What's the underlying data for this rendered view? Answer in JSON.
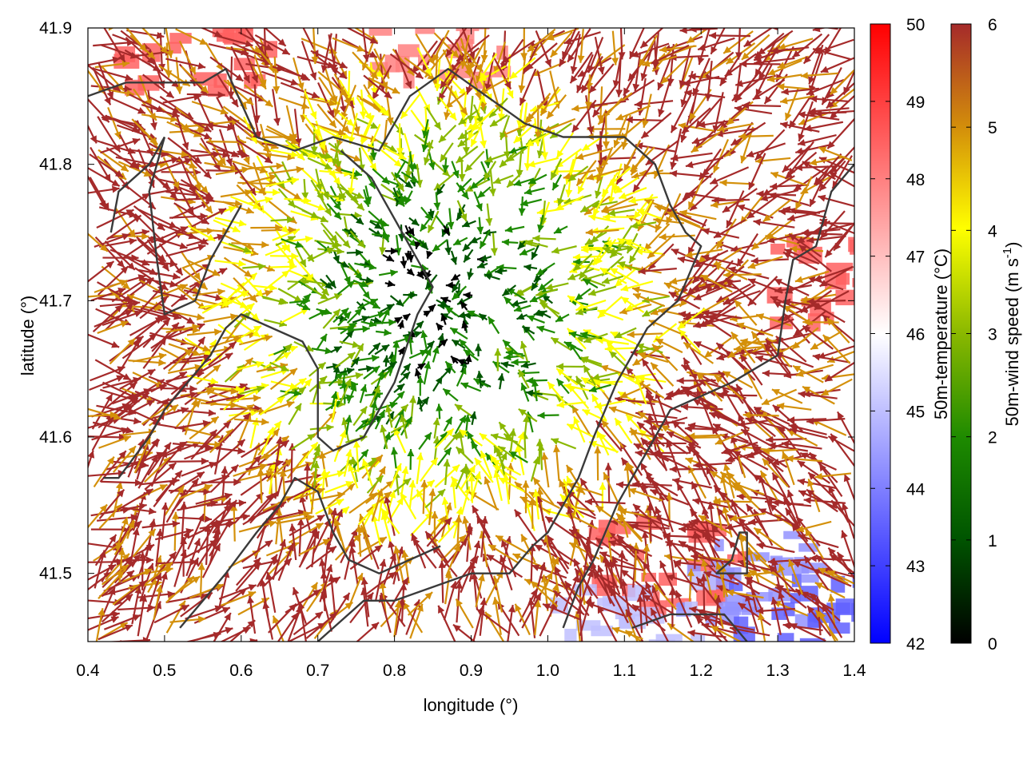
{
  "chart_data": {
    "type": "heatmap",
    "subtype": "wind-vector field over temperature map with contour lines",
    "title": "",
    "xlabel": "longitude (°)",
    "ylabel": "latitude (°)",
    "xlim": [
      0.4,
      1.4
    ],
    "ylim": [
      41.45,
      41.9
    ],
    "x_ticks": [
      "0.4",
      "0.5",
      "0.6",
      "0.7",
      "0.8",
      "0.9",
      "1.0",
      "1.1",
      "1.2",
      "1.3",
      "1.4"
    ],
    "y_ticks": [
      "41.5",
      "41.6",
      "41.7",
      "41.8",
      "41.9"
    ],
    "grid": false,
    "temperature_colorbar": {
      "label": "50m-temperature (°C)",
      "range": [
        42,
        50
      ],
      "ticks": [
        "42",
        "43",
        "44",
        "45",
        "46",
        "47",
        "48",
        "49",
        "50"
      ],
      "colors": [
        "#0000ff",
        "#ffffff",
        "#ff0000"
      ]
    },
    "wind_colorbar": {
      "label_main": "50m-wind speed (m s",
      "label_exp": "-1",
      "label_close": ")",
      "range": [
        0,
        6
      ],
      "ticks": [
        "0",
        "1",
        "2",
        "3",
        "4",
        "5",
        "6"
      ],
      "colors": [
        "#000000",
        "#005500",
        "#1d8a00",
        "#8ab800",
        "#ffff00",
        "#d4900a",
        "#a52a2a"
      ]
    },
    "temperature_background": [
      {
        "lon": 0.53,
        "lat": 41.89,
        "temp": 48.5
      },
      {
        "lon": 0.84,
        "lat": 41.9,
        "temp": 48.0
      },
      {
        "lon": 1.38,
        "lat": 41.72,
        "temp": 48.5
      },
      {
        "lon": 1.15,
        "lat": 41.51,
        "temp": 48.5
      },
      {
        "lon": 1.24,
        "lat": 41.5,
        "temp": 44.3
      },
      {
        "lon": 1.1,
        "lat": 41.47,
        "temp": 45.0
      },
      {
        "lon": 1.32,
        "lat": 41.47,
        "temp": 43.5
      }
    ],
    "wind_field": {
      "calm_center": {
        "lon": 0.86,
        "lat": 41.7
      },
      "flow": "converging toward center",
      "center_speed": 0.5,
      "outer_speed": 6
    },
    "contour_lines": [
      [
        [
          0.4,
          41.85
        ],
        [
          0.45,
          41.86
        ],
        [
          0.5,
          41.86
        ],
        [
          0.55,
          41.86
        ],
        [
          0.58,
          41.87
        ],
        [
          0.62,
          41.82
        ],
        [
          0.67,
          41.81
        ],
        [
          0.72,
          41.82
        ],
        [
          0.78,
          41.81
        ],
        [
          0.82,
          41.85
        ],
        [
          0.87,
          41.87
        ],
        [
          0.92,
          41.85
        ],
        [
          0.97,
          41.83
        ],
        [
          1.02,
          41.82
        ],
        [
          1.06,
          41.82
        ],
        [
          1.1,
          41.82
        ],
        [
          1.14,
          41.8
        ],
        [
          1.16,
          41.77
        ],
        [
          1.18,
          41.75
        ],
        [
          1.2,
          41.74
        ],
        [
          1.17,
          41.7
        ],
        [
          1.13,
          41.68
        ],
        [
          1.11,
          41.66
        ],
        [
          1.09,
          41.64
        ],
        [
          1.06,
          41.6
        ],
        [
          1.04,
          41.57
        ],
        [
          1.02,
          41.55
        ],
        [
          1.0,
          41.53
        ],
        [
          0.98,
          41.52
        ],
        [
          0.95,
          41.5
        ],
        [
          0.9,
          41.5
        ],
        [
          0.85,
          41.49
        ],
        [
          0.8,
          41.48
        ],
        [
          0.76,
          41.48
        ],
        [
          0.72,
          41.46
        ],
        [
          0.7,
          41.45
        ]
      ],
      [
        [
          0.42,
          41.57
        ],
        [
          0.44,
          41.57
        ],
        [
          0.48,
          41.6
        ],
        [
          0.5,
          41.62
        ],
        [
          0.53,
          41.64
        ],
        [
          0.56,
          41.66
        ],
        [
          0.58,
          41.68
        ],
        [
          0.6,
          41.69
        ],
        [
          0.64,
          41.68
        ],
        [
          0.68,
          41.67
        ],
        [
          0.7,
          41.65
        ],
        [
          0.7,
          41.62
        ],
        [
          0.7,
          41.6
        ],
        [
          0.72,
          41.59
        ],
        [
          0.76,
          41.6
        ],
        [
          0.8,
          41.64
        ],
        [
          0.83,
          41.69
        ],
        [
          0.85,
          41.71
        ],
        [
          0.83,
          41.73
        ],
        [
          0.8,
          41.76
        ],
        [
          0.77,
          41.79
        ],
        [
          0.73,
          41.81
        ]
      ],
      [
        [
          0.52,
          41.46
        ],
        [
          0.55,
          41.48
        ],
        [
          0.58,
          41.5
        ],
        [
          0.62,
          41.53
        ],
        [
          0.65,
          41.55
        ],
        [
          0.67,
          41.57
        ],
        [
          0.7,
          41.56
        ],
        [
          0.72,
          41.53
        ],
        [
          0.74,
          41.51
        ],
        [
          0.78,
          41.5
        ],
        [
          0.82,
          41.51
        ],
        [
          0.86,
          41.52
        ]
      ],
      [
        [
          1.02,
          41.46
        ],
        [
          1.04,
          41.49
        ],
        [
          1.06,
          41.51
        ],
        [
          1.09,
          41.55
        ],
        [
          1.12,
          41.58
        ],
        [
          1.14,
          41.6
        ],
        [
          1.16,
          41.62
        ],
        [
          1.2,
          41.63
        ],
        [
          1.24,
          41.64
        ],
        [
          1.27,
          41.65
        ],
        [
          1.3,
          41.66
        ],
        [
          1.31,
          41.7
        ],
        [
          1.32,
          41.73
        ],
        [
          1.35,
          41.74
        ],
        [
          1.37,
          41.78
        ],
        [
          1.4,
          41.8
        ]
      ],
      [
        [
          1.11,
          41.46
        ],
        [
          1.16,
          41.47
        ],
        [
          1.2,
          41.47
        ],
        [
          1.23,
          41.47
        ],
        [
          1.26,
          41.45
        ]
      ],
      [
        [
          1.24,
          41.5
        ],
        [
          1.26,
          41.5
        ],
        [
          1.26,
          41.53
        ],
        [
          1.25,
          41.53
        ],
        [
          1.24,
          41.51
        ],
        [
          1.22,
          41.5
        ],
        [
          1.24,
          41.5
        ]
      ],
      [
        [
          0.43,
          41.75
        ],
        [
          0.44,
          41.78
        ],
        [
          0.48,
          41.8
        ],
        [
          0.5,
          41.82
        ]
      ],
      [
        [
          0.5,
          41.82
        ],
        [
          0.48,
          41.78
        ],
        [
          0.49,
          41.73
        ],
        [
          0.5,
          41.69
        ],
        [
          0.54,
          41.7
        ],
        [
          0.56,
          41.73
        ],
        [
          0.6,
          41.77
        ]
      ]
    ]
  }
}
